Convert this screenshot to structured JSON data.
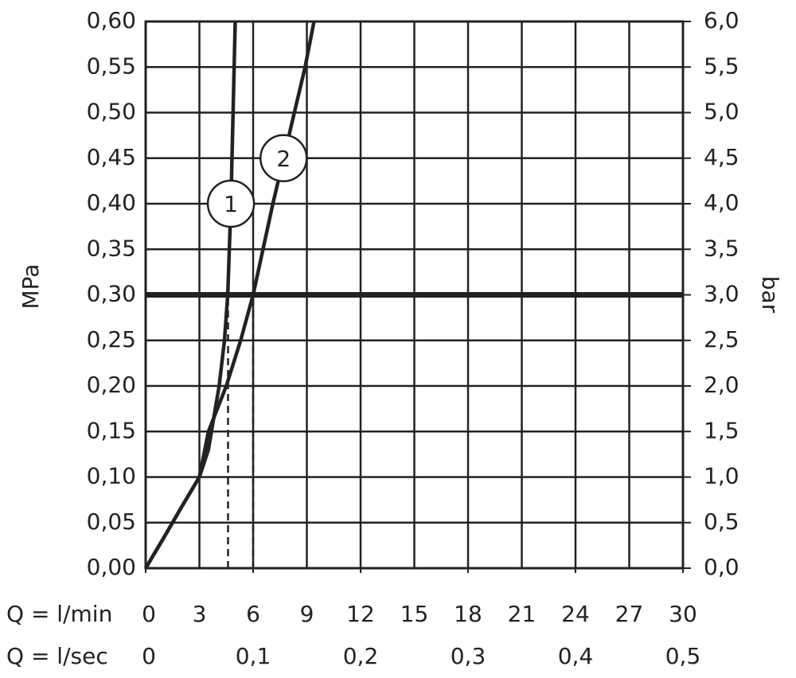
{
  "chart_data": {
    "type": "line",
    "y_label": "MPa",
    "y2_label": "bar",
    "x_label": "Q = l/min",
    "x2_label": "Q = l/sec",
    "xlim": [
      0,
      30
    ],
    "xticks": [
      0,
      3,
      6,
      9,
      12,
      15,
      18,
      21,
      24,
      27,
      30
    ],
    "x2lim": [
      0,
      0.5
    ],
    "x2ticks": [
      0,
      {
        "value": 0.1,
        "label": "0,1"
      },
      {
        "value": 0.2,
        "label": "0,2"
      },
      {
        "value": 0.3,
        "label": "0,3"
      },
      {
        "value": 0.4,
        "label": "0,4"
      },
      {
        "value": 0.5,
        "label": "0,5"
      }
    ],
    "ylim": [
      0,
      0.6
    ],
    "yticks": [
      {
        "value": 0,
        "label": "0,00"
      },
      {
        "value": 0.05,
        "label": "0,05"
      },
      {
        "value": 0.1,
        "label": "0,10"
      },
      {
        "value": 0.15,
        "label": "0,15"
      },
      {
        "value": 0.2,
        "label": "0,20"
      },
      {
        "value": 0.25,
        "label": "0,25"
      },
      {
        "value": 0.3,
        "label": "0,30"
      },
      {
        "value": 0.35,
        "label": "0,35"
      },
      {
        "value": 0.4,
        "label": "0,40"
      },
      {
        "value": 0.45,
        "label": "0,45"
      },
      {
        "value": 0.5,
        "label": "0,50"
      },
      {
        "value": 0.55,
        "label": "0,55"
      },
      {
        "value": 0.6,
        "label": "0,60"
      }
    ],
    "y2lim": [
      0,
      6
    ],
    "y2ticks": [
      {
        "value": 0,
        "label": "0,0"
      },
      {
        "value": 0.5,
        "label": "0,5"
      },
      {
        "value": 1,
        "label": "1,0"
      },
      {
        "value": 1.5,
        "label": "1,5"
      },
      {
        "value": 2,
        "label": "2,0"
      },
      {
        "value": 2.5,
        "label": "2,5"
      },
      {
        "value": 3,
        "label": "3,0"
      },
      {
        "value": 3.5,
        "label": "3,5"
      },
      {
        "value": 4,
        "label": "4,0"
      },
      {
        "value": 4.5,
        "label": "4,5"
      },
      {
        "value": 5,
        "label": "5,0"
      },
      {
        "value": 5.5,
        "label": "5,5"
      },
      {
        "value": 6,
        "label": "6,0"
      }
    ],
    "grid": true,
    "color": "#222222",
    "hline": 0.3,
    "dashed_x": [
      4.6,
      6.0
    ],
    "series": [
      {
        "name": "1",
        "color": "#222222",
        "x": [
          0,
          1,
          2,
          3,
          3.5,
          4.1,
          4.4,
          4.58,
          4.76,
          5.0
        ],
        "values": [
          0,
          0.033,
          0.067,
          0.1,
          0.13,
          0.2,
          0.25,
          0.3,
          0.4,
          0.6
        ]
      },
      {
        "name": "2",
        "color": "#222222",
        "x": [
          0,
          1,
          2,
          3,
          3.5,
          4.5,
          5.3,
          6.0,
          7.1,
          7.7,
          8.3,
          8.9,
          9.4
        ],
        "values": [
          0,
          0.033,
          0.067,
          0.1,
          0.15,
          0.2,
          0.25,
          0.3,
          0.4,
          0.45,
          0.5,
          0.55,
          0.6
        ]
      }
    ]
  }
}
